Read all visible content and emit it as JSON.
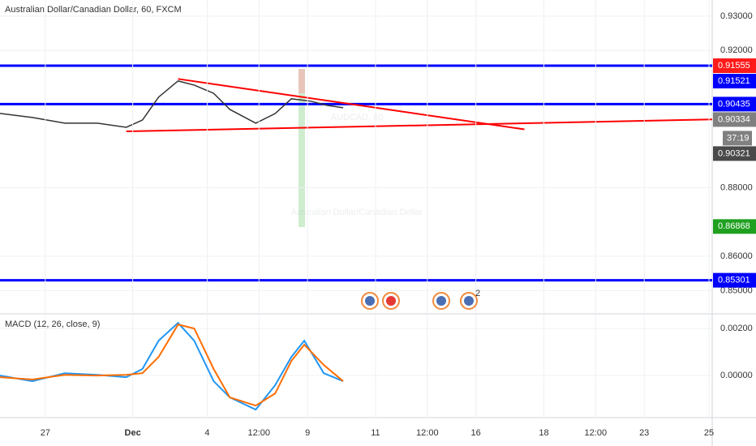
{
  "chart_data": [
    {
      "type": "line",
      "title": "Australian Dollar/Canadian Dollar, 60, FXCM",
      "watermark": [
        "AUDCAD, 60",
        "Australian Dollar/Canadian Dollar"
      ],
      "xlim": [
        0,
        220
      ],
      "ylim": [
        0.8437,
        0.9347
      ],
      "yticks": [
        {
          "value": 0.93,
          "label": "0.93000"
        },
        {
          "value": 0.92,
          "label": "0.92000"
        },
        {
          "value": 0.88,
          "label": "0.88000"
        },
        {
          "value": 0.86,
          "label": "0.86000"
        },
        {
          "value": 0.85,
          "label": "0.85000"
        }
      ],
      "grid": true,
      "x": [
        0,
        10,
        20,
        30,
        39,
        44,
        49,
        55,
        60,
        66,
        71,
        79,
        85,
        90,
        96,
        101,
        106
      ],
      "series": [
        {
          "name": "AUDCAD",
          "color": "#333333",
          "values": [
            0.90163,
            0.90045,
            0.8988,
            0.8988,
            0.8976,
            0.8997,
            0.9064,
            0.9111,
            0.9099,
            0.9075,
            0.9028,
            0.8988,
            0.9016,
            0.9059,
            0.9052,
            0.904,
            0.9033
          ]
        }
      ],
      "hlines": [
        {
          "value": 0.91555,
          "color": "#0000ff"
        },
        {
          "value": 0.90435,
          "color": "#0000ff"
        },
        {
          "value": 0.85301,
          "color": "#0000ff"
        }
      ],
      "trendlines": [
        {
          "x": [
            55,
            162
          ],
          "y": [
            0.9117,
            0.897
          ],
          "color": "#ff0000"
        },
        {
          "x": [
            39,
            220
          ],
          "y": [
            0.8964,
            0.8999
          ],
          "color": "#ff0000"
        }
      ],
      "price_labels": [
        {
          "value": 0.91555,
          "label": "0.91555",
          "color": "#ff1a1a"
        },
        {
          "value": 0.91521,
          "label": "0.91521",
          "color": "#0000ff"
        },
        {
          "value": 0.90435,
          "label": "0.90435",
          "color": "#0000ff"
        },
        {
          "value": 0.90334,
          "label": "0.90334",
          "color": "#808080"
        },
        {
          "value": 0.90321,
          "label": "0.90321",
          "color": "#4a4a4a"
        },
        {
          "value": 0.86868,
          "label": "0.86868",
          "color": "#1fa01f"
        },
        {
          "value": 0.85301,
          "label": "0.85301",
          "color": "#0000ff"
        }
      ],
      "countdown": "37:19",
      "event_count": "2"
    },
    {
      "type": "line",
      "title": "MACD (12, 26, close, 9)",
      "xlim": [
        0,
        220
      ],
      "ylim": [
        -0.00179,
        0.00259
      ],
      "yticks": [
        {
          "value": 0.002,
          "label": "0.00200"
        },
        {
          "value": 0,
          "label": "0.00000"
        }
      ],
      "xticks": [
        {
          "value": 14,
          "label": "27"
        },
        {
          "value": 41,
          "label": "Dec"
        },
        {
          "value": 64,
          "label": "4"
        },
        {
          "value": 80,
          "label": "12:00"
        },
        {
          "value": 95,
          "label": "9"
        },
        {
          "value": 116,
          "label": "11"
        },
        {
          "value": 132,
          "label": "12:00"
        },
        {
          "value": 147,
          "label": "16"
        },
        {
          "value": 168,
          "label": "18"
        },
        {
          "value": 184,
          "label": "12:00"
        },
        {
          "value": 199,
          "label": "23"
        },
        {
          "value": 219,
          "label": "25"
        }
      ],
      "x": [
        0,
        10,
        20,
        30,
        39,
        44,
        49,
        55,
        60,
        66,
        71,
        79,
        85,
        90,
        94,
        100,
        106
      ],
      "series": [
        {
          "name": "MACD",
          "color": "#2196f3",
          "values": [
            0,
            -0.00024,
            0.0001,
            3e-05,
            -7e-05,
            0.00028,
            0.00148,
            0.00224,
            0.00148,
            -0.00024,
            -0.00093,
            -0.00145,
            -0.00041,
            0.00079,
            0.00148,
            0.0001,
            -0.00024
          ]
        },
        {
          "name": "Signal",
          "color": "#ff6d00",
          "values": [
            -7e-05,
            -0.00017,
            3e-05,
            0,
            3e-05,
            0.0001,
            0.00079,
            0.00217,
            0.002,
            0.00028,
            -0.00093,
            -0.00128,
            -0.00076,
            0.00062,
            0.00131,
            0.00045,
            -0.00024
          ]
        }
      ]
    }
  ]
}
